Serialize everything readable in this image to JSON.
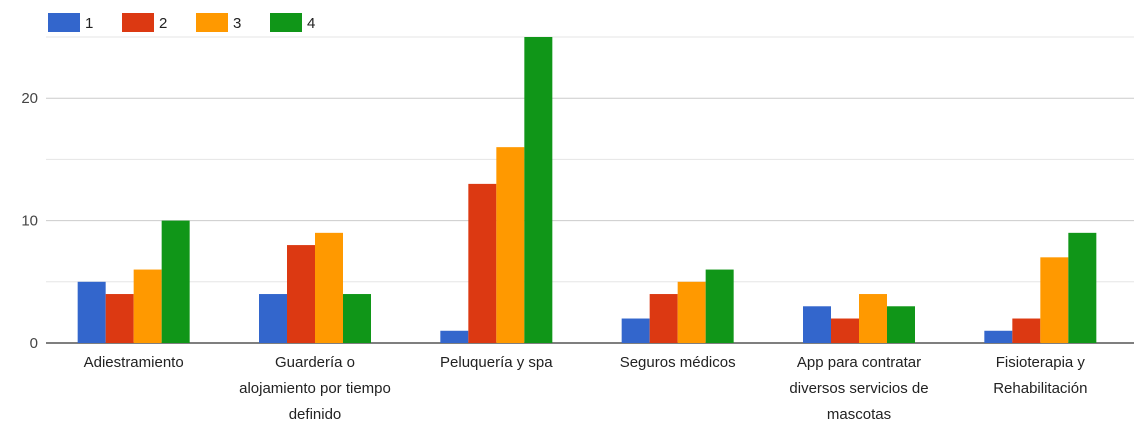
{
  "chart_data": {
    "type": "bar",
    "categories": [
      [
        "Adiestramiento"
      ],
      [
        "Guardería o",
        "alojamiento por tiempo",
        "definido"
      ],
      [
        "Peluquería y spa"
      ],
      [
        "Seguros médicos"
      ],
      [
        "App para contratar",
        "diversos servicios de",
        "mascotas"
      ],
      [
        "Fisioterapia y",
        "Rehabilitación"
      ]
    ],
    "series": [
      {
        "name": "1",
        "color": "#3366cc",
        "values": [
          5,
          4,
          1,
          2,
          3,
          1
        ]
      },
      {
        "name": "2",
        "color": "#dc3912",
        "values": [
          4,
          8,
          13,
          4,
          2,
          2
        ]
      },
      {
        "name": "3",
        "color": "#ff9900",
        "values": [
          6,
          9,
          16,
          5,
          4,
          7
        ]
      },
      {
        "name": "4",
        "color": "#109618",
        "values": [
          10,
          4,
          25,
          6,
          3,
          9
        ]
      }
    ],
    "ylim": [
      0,
      25
    ],
    "yticks": [
      0,
      10,
      20
    ],
    "grid": true,
    "legend_position": "top-left",
    "title": "",
    "xlabel": "",
    "ylabel": ""
  }
}
